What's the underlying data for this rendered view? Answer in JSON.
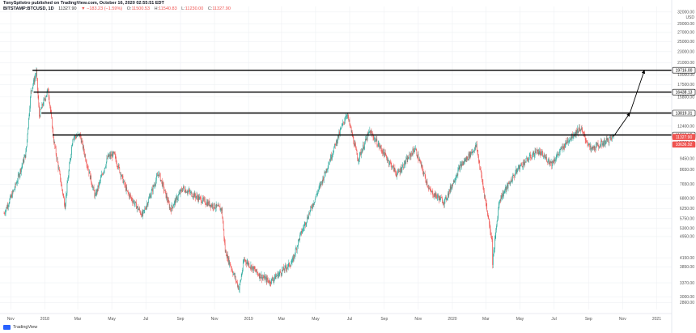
{
  "header": {
    "line1": "TonySpilotro published on TradingView.com, October 16, 2020 02:55:51 EDT",
    "symbol": "BITSTAMP:BTCUSD, 1D",
    "last": "11327.90",
    "change": "▼ −183.23 (−1.59%)",
    "o_label": "O:",
    "o": "11500.53",
    "h_label": "H:",
    "h": "11540.83",
    "l_label": "L:",
    "l": "11230.00",
    "c_label": "C:",
    "c": "11327.90"
  },
  "footer": {
    "brand": "TradingView"
  },
  "colors": {
    "up": "#26a69a",
    "down": "#ef5350",
    "level_line": "#000000",
    "grid": "#eef0f3",
    "axis_text": "#555555",
    "current_tag": "#ef5350"
  },
  "chart_data": {
    "type": "candlestick",
    "symbol": "BITSTAMP:BTCUSD",
    "interval": "1D",
    "currency": "USD",
    "x_tick_labels": [
      "Nov",
      "2018",
      "Mar",
      "May",
      "Jul",
      "Sep",
      "Nov",
      "2019",
      "Mar",
      "May",
      "Jul",
      "Sep",
      "Nov",
      "2020",
      "Mar",
      "May",
      "Jul",
      "Sep",
      "Nov",
      "2021"
    ],
    "y_tick_labels": [
      "32000.00",
      "29000.00",
      "27000.00",
      "25000.00",
      "23000.00",
      "21000.00",
      "19000.00",
      "17500.00",
      "15800.00",
      "13800.00",
      "12400.00",
      "10800.00",
      "9450.00",
      "8650.00",
      "7650.00",
      "6800.00",
      "6250.00",
      "5750.00",
      "5300.00",
      "4950.00",
      "4150.00",
      "3850.00",
      "3370.00",
      "3000.00",
      "2860.00"
    ],
    "horizontal_levels": [
      19716.0,
      16438.13,
      13819.31,
      11513.15
    ],
    "price_tags": [
      {
        "label": "19716.00",
        "value": 19716.0
      },
      {
        "label": "16438.13",
        "value": 16438.13
      },
      {
        "label": "13819.31",
        "value": 13819.31
      },
      {
        "label": "11513.15",
        "value": 11513.15
      },
      {
        "label": "11327.90",
        "value": 11327.9,
        "current": true
      },
      {
        "label": "10636.92",
        "value": 10636.92
      }
    ],
    "projection_path": [
      {
        "date": "2020-10-16",
        "price": 11400
      },
      {
        "date": "2020-11-14",
        "price": 13819
      },
      {
        "date": "2020-12-10",
        "price": 19716
      }
    ],
    "series_points": [
      {
        "date": "2017-10-20",
        "price": 6000
      },
      {
        "date": "2017-11-08",
        "price": 7400
      },
      {
        "date": "2017-11-28",
        "price": 9900
      },
      {
        "date": "2017-12-07",
        "price": 16500
      },
      {
        "date": "2017-12-17",
        "price": 19400
      },
      {
        "date": "2017-12-22",
        "price": 13500
      },
      {
        "date": "2017-12-28",
        "price": 14800
      },
      {
        "date": "2018-01-07",
        "price": 16800
      },
      {
        "date": "2018-01-17",
        "price": 11000
      },
      {
        "date": "2018-02-06",
        "price": 6400
      },
      {
        "date": "2018-02-20",
        "price": 11300
      },
      {
        "date": "2018-03-05",
        "price": 11500
      },
      {
        "date": "2018-04-01",
        "price": 6900
      },
      {
        "date": "2018-04-24",
        "price": 9600
      },
      {
        "date": "2018-05-05",
        "price": 9800
      },
      {
        "date": "2018-05-28",
        "price": 7200
      },
      {
        "date": "2018-06-25",
        "price": 5900
      },
      {
        "date": "2018-07-24",
        "price": 8400
      },
      {
        "date": "2018-08-14",
        "price": 6200
      },
      {
        "date": "2018-09-05",
        "price": 7400
      },
      {
        "date": "2018-10-15",
        "price": 6600
      },
      {
        "date": "2018-11-14",
        "price": 6200
      },
      {
        "date": "2018-11-20",
        "price": 4400
      },
      {
        "date": "2018-12-15",
        "price": 3200
      },
      {
        "date": "2018-12-24",
        "price": 4100
      },
      {
        "date": "2019-01-20",
        "price": 3600
      },
      {
        "date": "2019-02-08",
        "price": 3400
      },
      {
        "date": "2019-03-20",
        "price": 4000
      },
      {
        "date": "2019-04-02",
        "price": 4900
      },
      {
        "date": "2019-05-14",
        "price": 8000
      },
      {
        "date": "2019-06-26",
        "price": 13800
      },
      {
        "date": "2019-07-16",
        "price": 9400
      },
      {
        "date": "2019-08-06",
        "price": 11900
      },
      {
        "date": "2019-09-24",
        "price": 8300
      },
      {
        "date": "2019-10-26",
        "price": 10300
      },
      {
        "date": "2019-11-22",
        "price": 7200
      },
      {
        "date": "2019-12-18",
        "price": 6600
      },
      {
        "date": "2020-01-14",
        "price": 8800
      },
      {
        "date": "2020-02-13",
        "price": 10500
      },
      {
        "date": "2020-03-12",
        "price": 4800
      },
      {
        "date": "2020-03-13",
        "price": 4000
      },
      {
        "date": "2020-03-25",
        "price": 6700
      },
      {
        "date": "2020-04-29",
        "price": 8800
      },
      {
        "date": "2020-06-01",
        "price": 10100
      },
      {
        "date": "2020-06-27",
        "price": 9100
      },
      {
        "date": "2020-07-27",
        "price": 11100
      },
      {
        "date": "2020-08-17",
        "price": 12200
      },
      {
        "date": "2020-09-05",
        "price": 10200
      },
      {
        "date": "2020-09-24",
        "price": 10700
      },
      {
        "date": "2020-10-16",
        "price": 11328
      }
    ]
  }
}
